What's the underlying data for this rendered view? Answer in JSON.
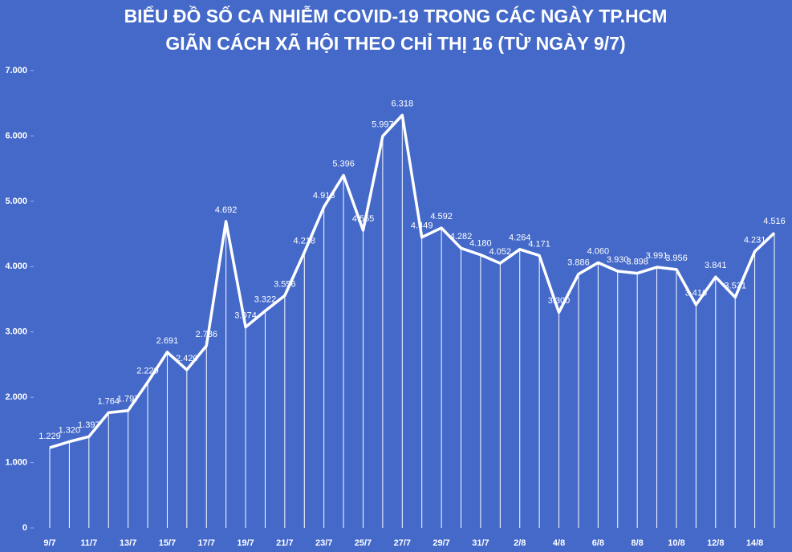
{
  "chart_data": {
    "type": "line",
    "title": "BIỂU ĐỒ SỐ CA NHIỄM COVID-19 TRONG CÁC NGÀY TP.HCM",
    "subtitle": "GIÃN CÁCH XÃ HỘI THEO CHỈ THỊ 16 (TỪ NGÀY 9/7)",
    "categories": [
      "9/7",
      null,
      "11/7",
      null,
      "13/7",
      null,
      "15/7",
      null,
      "17/7",
      null,
      "19/7",
      null,
      "21/7",
      null,
      "23/7",
      null,
      "25/7",
      null,
      "27/7",
      null,
      "29/7",
      null,
      "31/7",
      null,
      "2/8",
      null,
      "4/8",
      null,
      "6/8",
      null,
      "8/8",
      null,
      "10/8",
      null,
      "12/8",
      null,
      "14/8",
      null
    ],
    "values": [
      1229,
      1320,
      1397,
      1764,
      1797,
      2229,
      2691,
      2420,
      2786,
      4692,
      3074,
      3322,
      3556,
      4218,
      4913,
      5396,
      4555,
      5997,
      6318,
      4449,
      4592,
      4282,
      4180,
      4052,
      4264,
      4171,
      3300,
      3886,
      4060,
      3930,
      3898,
      3991,
      3956,
      3416,
      3841,
      3531,
      4231,
      4516
    ],
    "value_labels": [
      "1.229",
      "1.320",
      "1.397",
      "1.764",
      "1.797",
      "2.229",
      "2.691",
      "2.420",
      "2.786",
      "4.692",
      "3.074",
      "3.322",
      "3.556",
      "4.218",
      "4.913",
      "5.396",
      "4.555",
      "5.997",
      "6.318",
      "4.449",
      "4.592",
      "4.282",
      "4.180",
      "4.052",
      "4.264",
      "4.171",
      "3.300",
      "3.886",
      "4.060",
      "3.930",
      "3.898",
      "3.991",
      "3.956",
      "3.416",
      "3.841",
      "3.531",
      "4.231",
      "4.516"
    ],
    "color": "#ffffff",
    "ylim": [
      0,
      7000
    ],
    "yticks": [
      0,
      {
        "value": 1000,
        "label": "1.000"
      },
      {
        "value": 2000,
        "label": "2.000"
      },
      {
        "value": 3000,
        "label": "3.000"
      },
      {
        "value": 4000,
        "label": "4.000"
      },
      {
        "value": 5000,
        "label": "5.000"
      },
      {
        "value": 6000,
        "label": "6.000"
      },
      {
        "value": 7000,
        "label": "7.000"
      }
    ]
  }
}
